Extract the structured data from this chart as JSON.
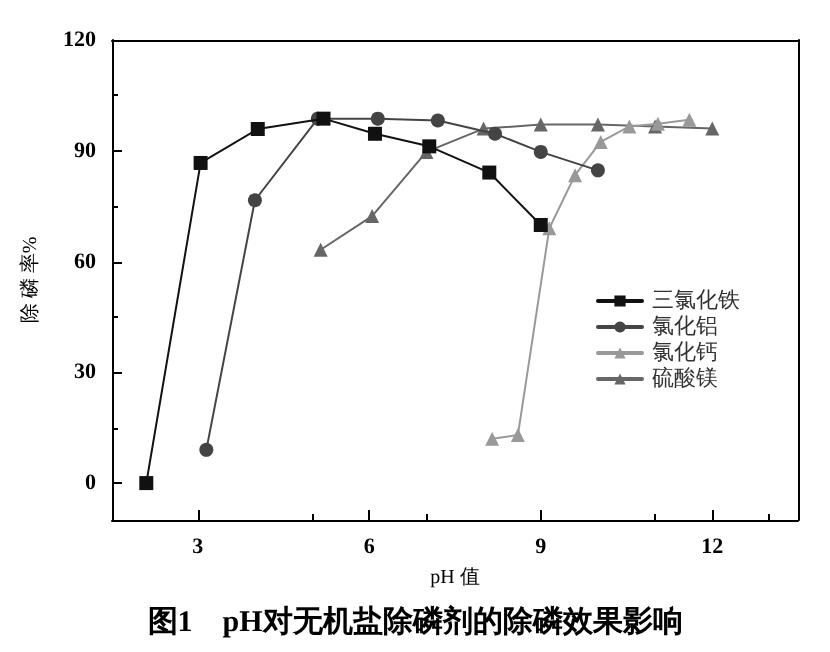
{
  "chart_data": {
    "type": "line",
    "title": "图1　pH对无机盐除磷剂的除磷效果影响",
    "xlabel": "pH 值",
    "ylabel": "除 磷 率%",
    "xlim": [
      1.5,
      13.5
    ],
    "ylim": [
      -10,
      120
    ],
    "xticks": [
      3,
      6,
      9,
      12
    ],
    "yticks": [
      0,
      30,
      60,
      90,
      120
    ],
    "grid": false,
    "legend": "right",
    "line_style": "solid",
    "series": [
      {
        "name": "三氯化铁",
        "color": "#111111",
        "marker": "square",
        "x": [
          2.1,
          3.05,
          4.05,
          5.2,
          6.1,
          7.05,
          8.1,
          9.0
        ],
        "values": [
          0,
          86.7,
          95.9,
          98.7,
          94.6,
          91.2,
          84.1,
          69.9
        ]
      },
      {
        "name": "氯化铝",
        "color": "#444444",
        "marker": "circle",
        "x": [
          3.15,
          4.0,
          5.1,
          6.15,
          7.2,
          8.2,
          9.0,
          10.0
        ],
        "values": [
          9,
          76.6,
          98.7,
          98.7,
          98.2,
          94.6,
          89.7,
          84.7
        ]
      },
      {
        "name": "氯化钙",
        "color": "#999999",
        "marker": "triangle",
        "x": [
          8.15,
          8.6,
          9.15,
          9.6,
          10.05,
          10.55,
          11.05,
          11.6
        ],
        "values": [
          12,
          13,
          69,
          83.4,
          92.4,
          96.6,
          97.3,
          98.4
        ]
      },
      {
        "name": "硫酸镁",
        "color": "#666666",
        "marker": "triangle",
        "x": [
          5.15,
          6.05,
          7.0,
          8.0,
          9.0,
          10.0,
          11.0,
          12.0
        ],
        "values": [
          63.2,
          72.3,
          89.7,
          96,
          97.1,
          97.1,
          96.6,
          96
        ]
      }
    ]
  }
}
